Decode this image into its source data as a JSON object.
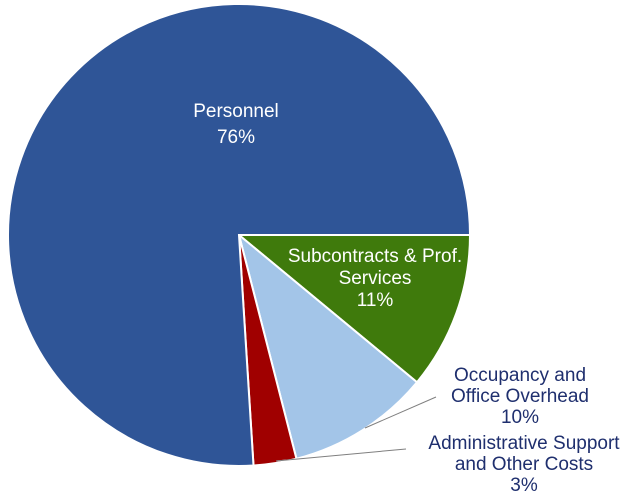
{
  "chart_data": {
    "type": "pie",
    "title": "",
    "start_angle_deg": 0,
    "direction": "clockwise",
    "slices": [
      {
        "label_lines": [
          "Subcontracts & Prof.",
          "Services"
        ],
        "pct_label": "11%",
        "value": 11,
        "color": "#3f7a0c"
      },
      {
        "label_lines": [
          "Occupancy and",
          "Office Overhead"
        ],
        "pct_label": "10%",
        "value": 10,
        "color": "#a3c5e8"
      },
      {
        "label_lines": [
          "Administrative Support",
          "and Other Costs"
        ],
        "pct_label": "3%",
        "value": 3,
        "color": "#a00000"
      },
      {
        "label_lines": [
          "Personnel"
        ],
        "pct_label": "76%",
        "value": 76,
        "color": "#2f5597"
      }
    ]
  }
}
